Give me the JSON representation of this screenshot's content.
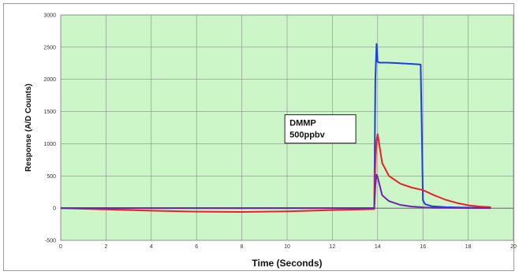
{
  "chart_data": {
    "type": "line",
    "title": "",
    "xlabel": "Time (Seconds)",
    "ylabel": "Response (A/D Counts)",
    "xlim": [
      0,
      20
    ],
    "ylim": [
      -500,
      3000
    ],
    "xticks": [
      0,
      2,
      4,
      6,
      8,
      10,
      12,
      14,
      16,
      18,
      20
    ],
    "yticks": [
      -500,
      0,
      500,
      1000,
      1500,
      2000,
      2500,
      3000
    ],
    "grid": true,
    "plot_background": "#ccf5c8",
    "grid_color": "#8a8a8a",
    "annotation": {
      "lines": [
        "DMMP",
        "500ppbv"
      ],
      "x": 9.9,
      "y": 1450
    },
    "series": [
      {
        "color": "#1f3fe0",
        "x": [
          0,
          13.85,
          13.9,
          13.95,
          14.0,
          14.1,
          14.4,
          15.0,
          15.5,
          15.9,
          15.95,
          16.0,
          16.1,
          16.4,
          17.0,
          18.0,
          19.0
        ],
        "y": [
          0,
          0,
          2000,
          2550,
          2270,
          2260,
          2260,
          2250,
          2240,
          2230,
          1200,
          120,
          60,
          30,
          15,
          8,
          5
        ]
      },
      {
        "color": "#e8202a",
        "x": [
          0,
          2,
          4,
          6,
          8,
          10,
          12,
          13.85,
          13.9,
          13.95,
          14.0,
          14.2,
          14.5,
          15.0,
          15.5,
          16.0,
          16.5,
          17.0,
          17.5,
          18.0,
          18.5,
          19.0
        ],
        "y": [
          0,
          -20,
          -40,
          -55,
          -60,
          -50,
          -30,
          -15,
          700,
          1050,
          1150,
          700,
          500,
          380,
          320,
          280,
          200,
          130,
          80,
          45,
          25,
          15
        ]
      },
      {
        "color": "#6a28a8",
        "x": [
          0,
          13.85,
          13.9,
          13.95,
          14.0,
          14.2,
          14.5,
          15.0,
          15.5,
          15.9,
          16.0,
          16.5,
          17.0,
          18.0,
          19.0
        ],
        "y": [
          0,
          0,
          350,
          520,
          480,
          200,
          110,
          50,
          25,
          15,
          10,
          5,
          4,
          2,
          0
        ]
      }
    ]
  }
}
